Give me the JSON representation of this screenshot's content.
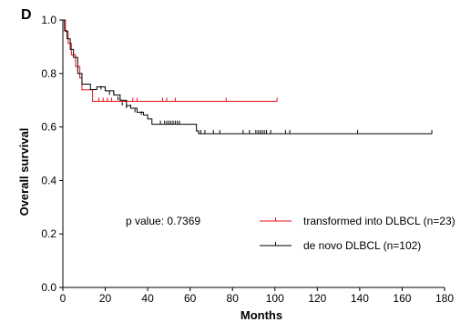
{
  "panel_label": "D",
  "chart_data": {
    "type": "line",
    "subtype": "kaplan-meier survival",
    "xlabel": "Months",
    "ylabel": "Overall survival",
    "xlim": [
      0,
      180
    ],
    "ylim": [
      0.0,
      1.0
    ],
    "x_ticks": [
      0,
      20,
      40,
      60,
      80,
      100,
      120,
      140,
      160,
      180
    ],
    "y_ticks": [
      0.0,
      0.2,
      0.4,
      0.6,
      0.8,
      1.0
    ],
    "x_tick_labels": [
      "0",
      "20",
      "40",
      "60",
      "80",
      "100",
      "120",
      "140",
      "160",
      "180"
    ],
    "y_tick_labels": [
      "0.0",
      "0.2",
      "0.4",
      "0.6",
      "0.8",
      "1.0"
    ],
    "grid": false,
    "annotation": "p value: 0.7369",
    "legend_position": "bottom-right",
    "series": [
      {
        "name": "transformed into DLBCL (n=23)",
        "color": "#e8101a",
        "steps": [
          [
            0,
            1.0
          ],
          [
            1.2,
            0.957
          ],
          [
            2.5,
            0.913
          ],
          [
            4,
            0.87
          ],
          [
            6,
            0.826
          ],
          [
            8,
            0.783
          ],
          [
            9,
            0.739
          ],
          [
            14,
            0.696
          ],
          [
            101,
            0.696
          ]
        ],
        "censored": [
          [
            17,
            0.696
          ],
          [
            19,
            0.696
          ],
          [
            21,
            0.696
          ],
          [
            23,
            0.696
          ],
          [
            27,
            0.696
          ],
          [
            33,
            0.696
          ],
          [
            35,
            0.696
          ],
          [
            47,
            0.696
          ],
          [
            49,
            0.696
          ],
          [
            53,
            0.696
          ],
          [
            77,
            0.696
          ],
          [
            101,
            0.696
          ]
        ]
      },
      {
        "name": "de novo DLBCL (n=102)",
        "color": "#000000",
        "steps": [
          [
            0,
            1.0
          ],
          [
            0.8,
            0.96
          ],
          [
            2,
            0.93
          ],
          [
            3.5,
            0.89
          ],
          [
            5,
            0.86
          ],
          [
            7,
            0.8
          ],
          [
            9,
            0.76
          ],
          [
            13,
            0.74
          ],
          [
            16,
            0.75
          ],
          [
            20,
            0.735
          ],
          [
            24,
            0.72
          ],
          [
            27,
            0.7
          ],
          [
            30,
            0.68
          ],
          [
            32,
            0.67
          ],
          [
            35,
            0.655
          ],
          [
            38,
            0.645
          ],
          [
            40,
            0.63
          ],
          [
            42,
            0.61
          ],
          [
            63,
            0.585
          ],
          [
            64,
            0.575
          ],
          [
            174,
            0.575
          ]
        ],
        "censored": [
          [
            18,
            0.74
          ],
          [
            20,
            0.735
          ],
          [
            22,
            0.72
          ],
          [
            24,
            0.72
          ],
          [
            26,
            0.7
          ],
          [
            28,
            0.68
          ],
          [
            30,
            0.67
          ],
          [
            32,
            0.67
          ],
          [
            34,
            0.655
          ],
          [
            37,
            0.645
          ],
          [
            46,
            0.61
          ],
          [
            48,
            0.61
          ],
          [
            49,
            0.61
          ],
          [
            50,
            0.61
          ],
          [
            51,
            0.61
          ],
          [
            52,
            0.61
          ],
          [
            53,
            0.61
          ],
          [
            54,
            0.61
          ],
          [
            55,
            0.61
          ],
          [
            65,
            0.575
          ],
          [
            67,
            0.575
          ],
          [
            71,
            0.575
          ],
          [
            74,
            0.575
          ],
          [
            85,
            0.575
          ],
          [
            88,
            0.575
          ],
          [
            91,
            0.575
          ],
          [
            92,
            0.575
          ],
          [
            93,
            0.575
          ],
          [
            94,
            0.575
          ],
          [
            95,
            0.575
          ],
          [
            96,
            0.575
          ],
          [
            98,
            0.575
          ],
          [
            105,
            0.575
          ],
          [
            107,
            0.575
          ],
          [
            139,
            0.575
          ],
          [
            174,
            0.575
          ]
        ]
      }
    ]
  }
}
